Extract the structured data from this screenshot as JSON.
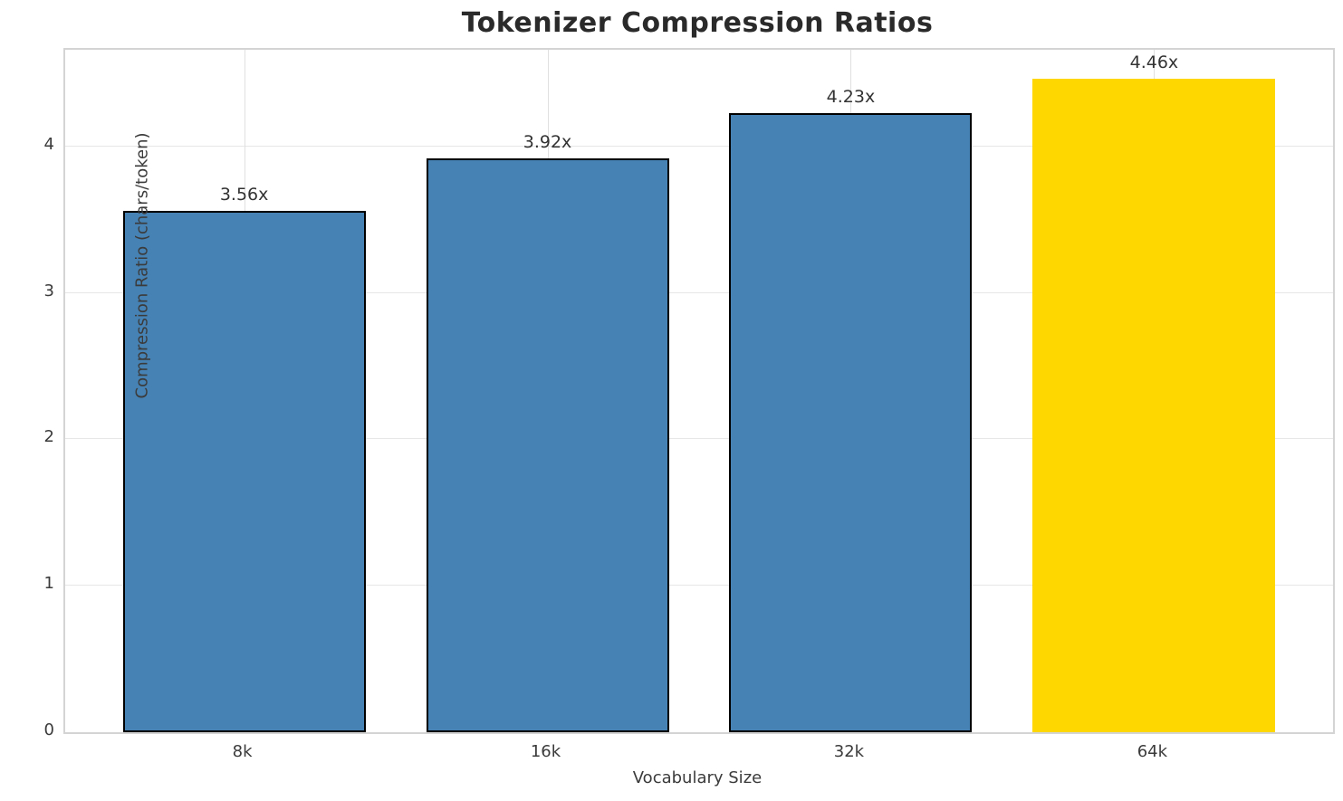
{
  "chart_data": {
    "type": "bar",
    "title": "Tokenizer Compression Ratios",
    "xlabel": "Vocabulary Size",
    "ylabel": "Compression Ratio (chars/token)",
    "categories": [
      "8k",
      "16k",
      "32k",
      "64k"
    ],
    "values": [
      3.56,
      3.92,
      4.23,
      4.46
    ],
    "bar_labels": [
      "3.56x",
      "3.92x",
      "4.23x",
      "4.46x"
    ],
    "bar_colors": [
      "#4682B4",
      "#4682B4",
      "#4682B4",
      "#FFD700"
    ],
    "bar_edge_colors": [
      "#000000",
      "#000000",
      "#000000",
      "none"
    ],
    "ylim": [
      0,
      4.66
    ],
    "yticks": [
      0,
      1,
      2,
      3,
      4
    ],
    "xlim_units": [
      -0.59,
      3.59
    ],
    "bar_width_units": 0.8,
    "grid": true,
    "grid_color": "#e7e7e7",
    "spine_color": "#d4d4d4",
    "legend": "none"
  }
}
